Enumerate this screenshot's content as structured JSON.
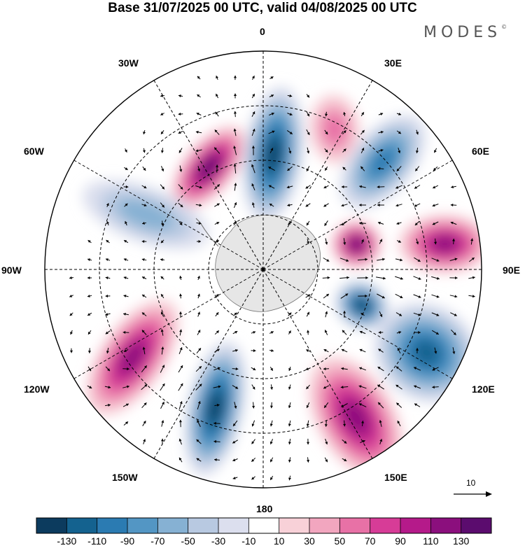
{
  "header": {
    "title": "Base 31/07/2025 00 UTC, valid 04/08/2025 00 UTC",
    "brand": "MODES",
    "brand_mark": "©"
  },
  "map": {
    "projection": "polar stereographic (south pole)",
    "longitude_labels": {
      "top": "0",
      "e30": "30E",
      "e60": "60E",
      "e90": "90E",
      "e120": "120E",
      "e150": "150E",
      "bottom": "180",
      "w150": "150W",
      "w120": "120W",
      "w90": "90W",
      "w60": "60W",
      "w30": "30W"
    },
    "anomaly_centers": [
      {
        "sign": "positive",
        "lon_deg": -28,
        "value": 130
      },
      {
        "sign": "negative",
        "lon_deg": 5,
        "value": -130
      },
      {
        "sign": "positive",
        "lon_deg": 27,
        "value": 50
      },
      {
        "sign": "negative",
        "lon_deg": 48,
        "value": -90
      },
      {
        "sign": "positive",
        "lon_deg": 75,
        "value": 130
      },
      {
        "sign": "positive",
        "lon_deg": 82,
        "value": 110
      },
      {
        "sign": "negative",
        "lon_deg": 110,
        "value": -130
      },
      {
        "sign": "negative",
        "lon_deg": 117,
        "value": -110
      },
      {
        "sign": "positive",
        "lon_deg": 148,
        "value": 110
      },
      {
        "sign": "negative",
        "lon_deg": -161,
        "value": -130
      },
      {
        "sign": "positive",
        "lon_deg": -124,
        "value": 110
      },
      {
        "sign": "negative",
        "lon_deg": -65,
        "value": -50
      }
    ],
    "colors": {
      "land": "#e6e6e6",
      "grid": "#000000",
      "arrow": "#000000"
    }
  },
  "reference_vector": {
    "label": "10"
  },
  "colorbar": {
    "tick_labels": [
      "-130",
      "-110",
      "-90",
      "-70",
      "-50",
      "-30",
      "-10",
      "10",
      "30",
      "50",
      "70",
      "90",
      "110",
      "130"
    ],
    "colors": [
      "#0c3b5e",
      "#14628f",
      "#2b7bb2",
      "#5396c4",
      "#86b1d3",
      "#b8c9e1",
      "#dcdfee",
      "#ffffff",
      "#f8d1d8",
      "#f2a6bf",
      "#e871a6",
      "#d73c97",
      "#b51a8a",
      "#8b0f7d",
      "#5b0c6e"
    ]
  }
}
